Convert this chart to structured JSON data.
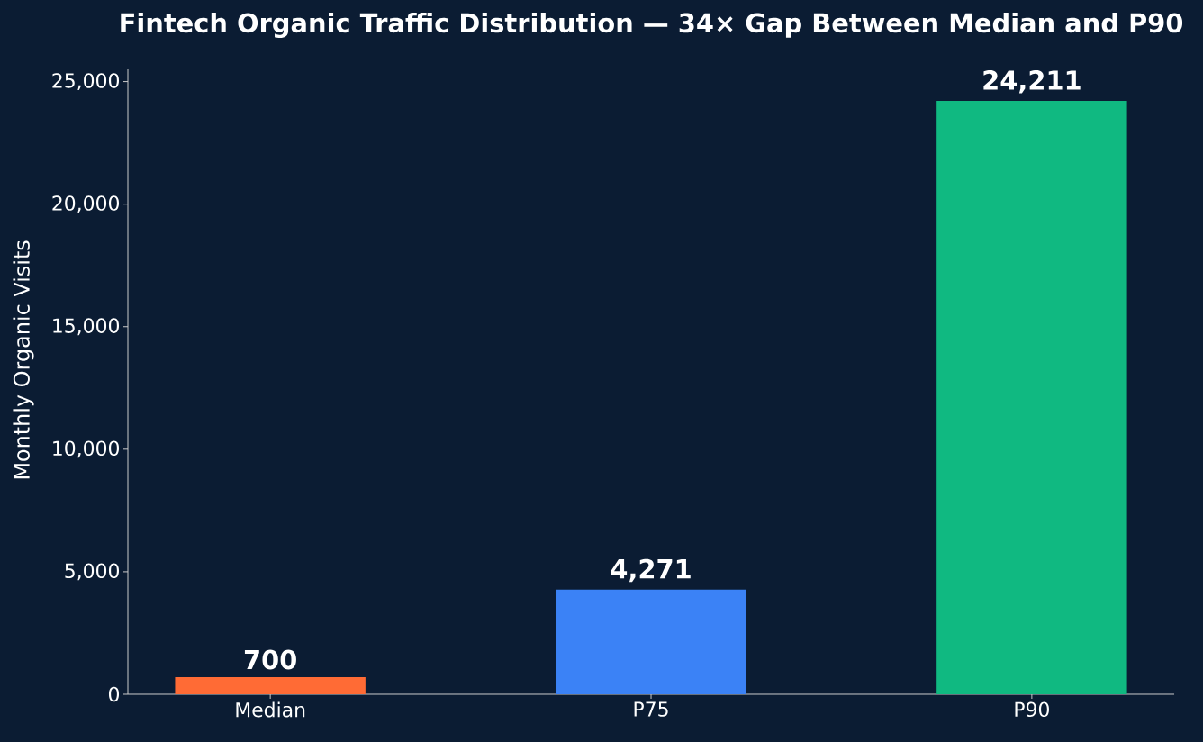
{
  "chart_data": {
    "type": "bar",
    "title": "Fintech Organic Traffic Distribution — 34× Gap Between Median and P90",
    "ylabel": "Monthly Organic Visits",
    "categories": [
      "Median",
      "P75",
      "P90"
    ],
    "values": [
      700,
      4271,
      24211
    ],
    "colors": [
      "#ff6b35",
      "#3b82f6",
      "#10b981"
    ],
    "value_labels": [
      "700",
      "4,271",
      "24,211"
    ],
    "ylim": [
      0,
      25500
    ],
    "yticks": [
      0,
      {
        "value": 5000,
        "label": "5,000"
      },
      {
        "value": 10000,
        "label": "10,000"
      },
      {
        "value": 15000,
        "label": "15,000"
      },
      {
        "value": 20000,
        "label": "20,000"
      },
      {
        "value": 25000,
        "label": "25,000"
      }
    ],
    "grid": false
  }
}
